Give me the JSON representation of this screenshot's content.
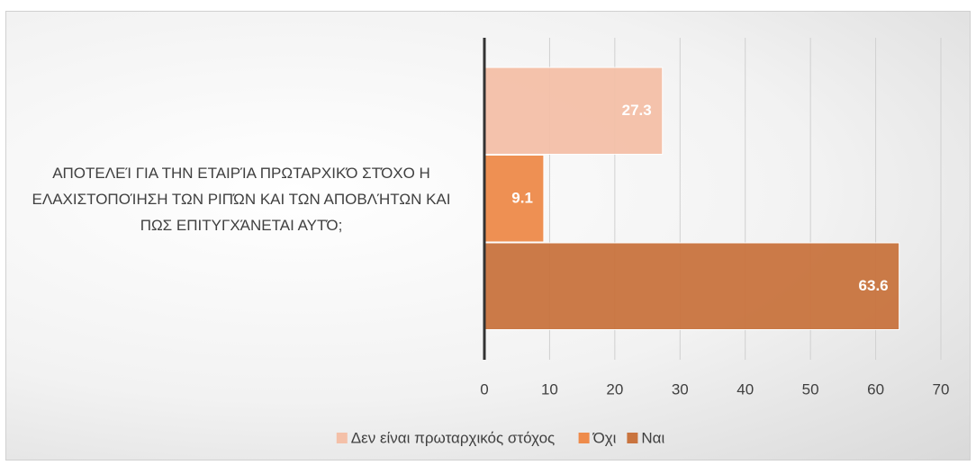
{
  "chart_data": {
    "type": "bar",
    "orientation": "horizontal",
    "categories": [
      "ΑΠΟΤΕΛΕΊ ΓΙΑ ΤΗΝ ΕΤΑΙΡΊΑ ΠΡΩΤΑΡΧΙΚΌ ΣΤΌΧΟ Η ΕΛΑΧΙΣΤΟΠΟΊΗΣΗ ΤΩΝ ΡΙΠΏΝ ΚΑΙ ΤΩΝ ΑΠΟΒΛΉΤΩΝ ΚΑΙ ΠΩΣ ΕΠΙΤΥΓΧΆΝΕΤΑΙ ΑΥΤΌ;"
    ],
    "series": [
      {
        "name": "Δεν είναι πρωταρχικός στόχος",
        "color": "#f4c0a8",
        "values": [
          27.3
        ]
      },
      {
        "name": "Όχι",
        "color": "#ee8b4b",
        "values": [
          9.1
        ]
      },
      {
        "name": "Ναι",
        "color": "#c9743f",
        "values": [
          63.6
        ]
      }
    ],
    "xlim": [
      0,
      70
    ],
    "xticks": [
      0,
      10,
      20,
      30,
      40,
      50,
      60,
      70
    ],
    "grid": true,
    "legend": "bottom"
  }
}
